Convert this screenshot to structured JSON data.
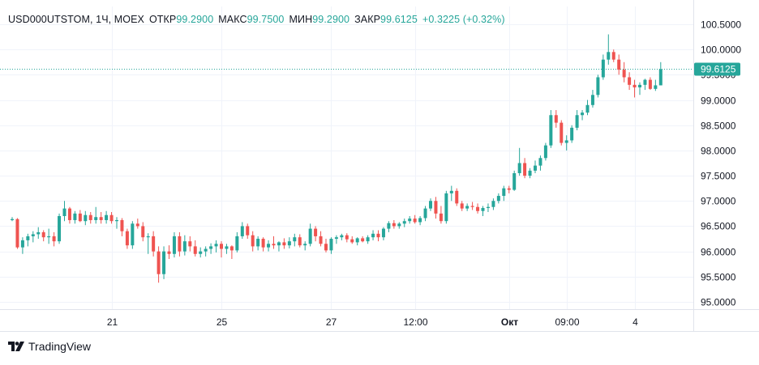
{
  "legend": {
    "symbol": "USD000UTSTOM, 1Ч, MOEX",
    "open_label": "ОТКР",
    "open_value": "99.2900",
    "high_label": "МАКС",
    "high_value": "99.7500",
    "low_label": "МИН",
    "low_value": "99.2900",
    "close_label": "ЗАКР",
    "close_value": "99.6125",
    "change": "+0.3225 (+0.32%)"
  },
  "price_axis": {
    "labels": [
      "100.5000",
      "100.0000",
      "99.5000",
      "99.0000",
      "98.5000",
      "98.0000",
      "97.5000",
      "97.0000",
      "96.5000",
      "96.0000",
      "95.5000",
      "95.0000"
    ],
    "current_price": "99.6125"
  },
  "time_axis": {
    "labels": [
      "21",
      "25",
      "27",
      "12:00",
      "Окт",
      "09:00",
      "4"
    ]
  },
  "branding": {
    "name": "TradingView"
  },
  "colors": {
    "up": "#26a69a",
    "down": "#ef5350",
    "grid": "#f0f3fa",
    "text": "#131722"
  },
  "chart_data": {
    "type": "candlestick",
    "title": "USD000UTSTOM, 1Ч, MOEX",
    "ylim": [
      94.9,
      100.9
    ],
    "ticks": [
      100.5,
      100.0,
      99.5,
      99.0,
      98.5,
      98.0,
      97.5,
      97.0,
      96.5,
      96.0,
      95.5,
      95.0
    ],
    "x_tick_indices": [
      19,
      40,
      61,
      77,
      95,
      106,
      119
    ],
    "last_price": 99.6125,
    "ohlc": [
      [
        96.62,
        96.68,
        96.6,
        96.64
      ],
      [
        96.64,
        96.66,
        96.05,
        96.08
      ],
      [
        96.08,
        96.28,
        95.95,
        96.22
      ],
      [
        96.22,
        96.35,
        96.1,
        96.3
      ],
      [
        96.3,
        96.4,
        96.18,
        96.34
      ],
      [
        96.34,
        96.48,
        96.25,
        96.38
      ],
      [
        96.38,
        96.42,
        96.2,
        96.28
      ],
      [
        96.28,
        96.45,
        96.15,
        96.3
      ],
      [
        96.3,
        96.38,
        96.1,
        96.2
      ],
      [
        96.2,
        96.75,
        96.15,
        96.7
      ],
      [
        96.7,
        97.0,
        96.6,
        96.85
      ],
      [
        96.85,
        96.88,
        96.55,
        96.62
      ],
      [
        96.62,
        96.8,
        96.55,
        96.75
      ],
      [
        96.75,
        96.82,
        96.58,
        96.6
      ],
      [
        96.6,
        96.8,
        96.52,
        96.72
      ],
      [
        96.72,
        96.78,
        96.55,
        96.62
      ],
      [
        96.62,
        96.88,
        96.55,
        96.68
      ],
      [
        96.68,
        96.78,
        96.55,
        96.62
      ],
      [
        96.62,
        96.8,
        96.55,
        96.72
      ],
      [
        96.72,
        96.78,
        96.55,
        96.6
      ],
      [
        96.6,
        96.68,
        96.45,
        96.62
      ],
      [
        96.62,
        96.66,
        96.3,
        96.4
      ],
      [
        96.4,
        96.45,
        96.05,
        96.12
      ],
      [
        96.12,
        96.6,
        96.05,
        96.55
      ],
      [
        96.55,
        96.65,
        96.45,
        96.5
      ],
      [
        96.5,
        96.58,
        96.2,
        96.28
      ],
      [
        96.28,
        96.36,
        95.95,
        96.3
      ],
      [
        96.3,
        96.4,
        95.9,
        96.0
      ],
      [
        96.0,
        96.1,
        95.38,
        95.55
      ],
      [
        95.55,
        96.1,
        95.45,
        96.0
      ],
      [
        96.0,
        96.12,
        95.85,
        95.95
      ],
      [
        95.95,
        96.38,
        95.88,
        96.3
      ],
      [
        96.3,
        96.38,
        95.9,
        96.0
      ],
      [
        96.0,
        96.32,
        95.92,
        96.2
      ],
      [
        96.2,
        96.3,
        96.0,
        96.1
      ],
      [
        96.1,
        96.22,
        95.9,
        95.95
      ],
      [
        95.95,
        96.08,
        95.88,
        96.0
      ],
      [
        96.0,
        96.1,
        95.9,
        96.05
      ],
      [
        96.05,
        96.16,
        95.95,
        96.1
      ],
      [
        96.1,
        96.22,
        95.98,
        96.15
      ],
      [
        96.15,
        96.2,
        95.88,
        96.05
      ],
      [
        96.05,
        96.15,
        95.95,
        96.1
      ],
      [
        96.1,
        96.12,
        95.85,
        96.02
      ],
      [
        96.02,
        96.38,
        95.98,
        96.3
      ],
      [
        96.3,
        96.58,
        96.25,
        96.5
      ],
      [
        96.5,
        96.55,
        96.25,
        96.32
      ],
      [
        96.32,
        96.4,
        96.0,
        96.1
      ],
      [
        96.1,
        96.3,
        96.02,
        96.25
      ],
      [
        96.25,
        96.28,
        96.0,
        96.08
      ],
      [
        96.08,
        96.22,
        96.0,
        96.15
      ],
      [
        96.15,
        96.3,
        96.05,
        96.12
      ],
      [
        96.12,
        96.2,
        96.0,
        96.18
      ],
      [
        96.18,
        96.26,
        96.05,
        96.12
      ],
      [
        96.12,
        96.28,
        96.06,
        96.2
      ],
      [
        96.2,
        96.35,
        96.1,
        96.28
      ],
      [
        96.28,
        96.34,
        96.08,
        96.12
      ],
      [
        96.12,
        96.2,
        96.02,
        96.15
      ],
      [
        96.15,
        96.55,
        96.1,
        96.45
      ],
      [
        96.45,
        96.5,
        96.2,
        96.3
      ],
      [
        96.3,
        96.4,
        96.1,
        96.15
      ],
      [
        96.15,
        96.25,
        95.98,
        96.02
      ],
      [
        96.02,
        96.28,
        95.95,
        96.25
      ],
      [
        96.25,
        96.32,
        96.15,
        96.28
      ],
      [
        96.28,
        96.35,
        96.22,
        96.32
      ],
      [
        96.32,
        96.36,
        96.18,
        96.24
      ],
      [
        96.24,
        96.3,
        96.15,
        96.18
      ],
      [
        96.18,
        96.28,
        96.12,
        96.26
      ],
      [
        96.26,
        96.3,
        96.18,
        96.2
      ],
      [
        96.2,
        96.32,
        96.15,
        96.28
      ],
      [
        96.28,
        96.42,
        96.22,
        96.35
      ],
      [
        96.35,
        96.42,
        96.2,
        96.28
      ],
      [
        96.28,
        96.48,
        96.22,
        96.45
      ],
      [
        96.45,
        96.6,
        96.38,
        96.56
      ],
      [
        96.56,
        96.62,
        96.45,
        96.5
      ],
      [
        96.5,
        96.58,
        96.45,
        96.55
      ],
      [
        96.55,
        96.65,
        96.48,
        96.6
      ],
      [
        96.6,
        96.7,
        96.55,
        96.65
      ],
      [
        96.65,
        96.72,
        96.55,
        96.58
      ],
      [
        96.58,
        96.7,
        96.52,
        96.66
      ],
      [
        96.66,
        96.9,
        96.6,
        96.85
      ],
      [
        96.85,
        97.05,
        96.8,
        97.0
      ],
      [
        97.0,
        97.08,
        96.65,
        96.75
      ],
      [
        96.75,
        96.9,
        96.55,
        96.6
      ],
      [
        96.6,
        97.2,
        96.55,
        97.15
      ],
      [
        97.15,
        97.3,
        97.0,
        97.2
      ],
      [
        97.2,
        97.25,
        96.9,
        96.95
      ],
      [
        96.95,
        97.0,
        96.8,
        96.85
      ],
      [
        96.85,
        96.95,
        96.8,
        96.9
      ],
      [
        96.9,
        96.98,
        96.82,
        96.88
      ],
      [
        96.88,
        96.95,
        96.75,
        96.8
      ],
      [
        96.8,
        96.9,
        96.7,
        96.86
      ],
      [
        96.86,
        96.95,
        96.78,
        96.88
      ],
      [
        96.88,
        97.05,
        96.82,
        97.0
      ],
      [
        97.0,
        97.15,
        96.95,
        97.1
      ],
      [
        97.1,
        97.3,
        97.0,
        97.25
      ],
      [
        97.25,
        97.3,
        97.15,
        97.22
      ],
      [
        97.22,
        97.6,
        97.2,
        97.55
      ],
      [
        97.55,
        98.05,
        97.5,
        97.75
      ],
      [
        97.75,
        97.85,
        97.45,
        97.5
      ],
      [
        97.5,
        97.65,
        97.45,
        97.6
      ],
      [
        97.6,
        97.8,
        97.55,
        97.7
      ],
      [
        97.7,
        97.9,
        97.6,
        97.85
      ],
      [
        97.85,
        98.15,
        97.8,
        98.1
      ],
      [
        98.1,
        98.8,
        98.05,
        98.7
      ],
      [
        98.7,
        98.8,
        98.45,
        98.55
      ],
      [
        98.55,
        98.6,
        98.1,
        98.15
      ],
      [
        98.15,
        98.3,
        98.0,
        98.2
      ],
      [
        98.2,
        98.5,
        98.15,
        98.45
      ],
      [
        98.45,
        98.8,
        98.4,
        98.7
      ],
      [
        98.7,
        98.8,
        98.6,
        98.75
      ],
      [
        98.75,
        99.0,
        98.7,
        98.9
      ],
      [
        98.9,
        99.2,
        98.85,
        99.1
      ],
      [
        99.1,
        99.5,
        99.05,
        99.45
      ],
      [
        99.45,
        99.9,
        99.4,
        99.8
      ],
      [
        99.8,
        100.3,
        99.7,
        99.95
      ],
      [
        99.95,
        100.0,
        99.75,
        99.8
      ],
      [
        99.8,
        99.9,
        99.5,
        99.6
      ],
      [
        99.6,
        99.75,
        99.35,
        99.45
      ],
      [
        99.45,
        99.55,
        99.2,
        99.3
      ],
      [
        99.3,
        99.4,
        99.05,
        99.25
      ],
      [
        99.25,
        99.35,
        99.1,
        99.3
      ],
      [
        99.3,
        99.42,
        99.2,
        99.4
      ],
      [
        99.4,
        99.45,
        99.2,
        99.22
      ],
      [
        99.22,
        99.4,
        99.18,
        99.29
      ],
      [
        99.29,
        99.75,
        99.29,
        99.61
      ]
    ]
  }
}
